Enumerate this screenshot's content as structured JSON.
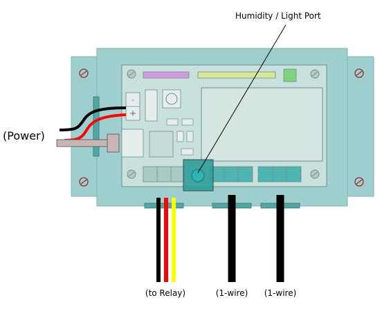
{
  "labels": {
    "humidity_port": "Humidity / Light Port",
    "power": "(Power)",
    "to_relay": "(to Relay)",
    "one_wire_a": "(1-wire)",
    "one_wire_b": "(1-wire)",
    "terminal_minus": "-",
    "terminal_plus": "+"
  },
  "colors": {
    "enclosure": "#9ecfce",
    "enclosure_stroke": "#7fb3b2",
    "board": "#c9e1dc",
    "board_stroke": "#6f8f8c",
    "lcd": "#d5e5e1",
    "header_purple": "#d59be0",
    "header_yellow": "#d6e79a",
    "led_green": "#7fd37f",
    "wire_black": "#000000",
    "wire_red": "#ff0000",
    "wire_yellow": "#ffff00",
    "screw_red": "#9a2b2b",
    "port_teal": "#2aa7a3"
  }
}
